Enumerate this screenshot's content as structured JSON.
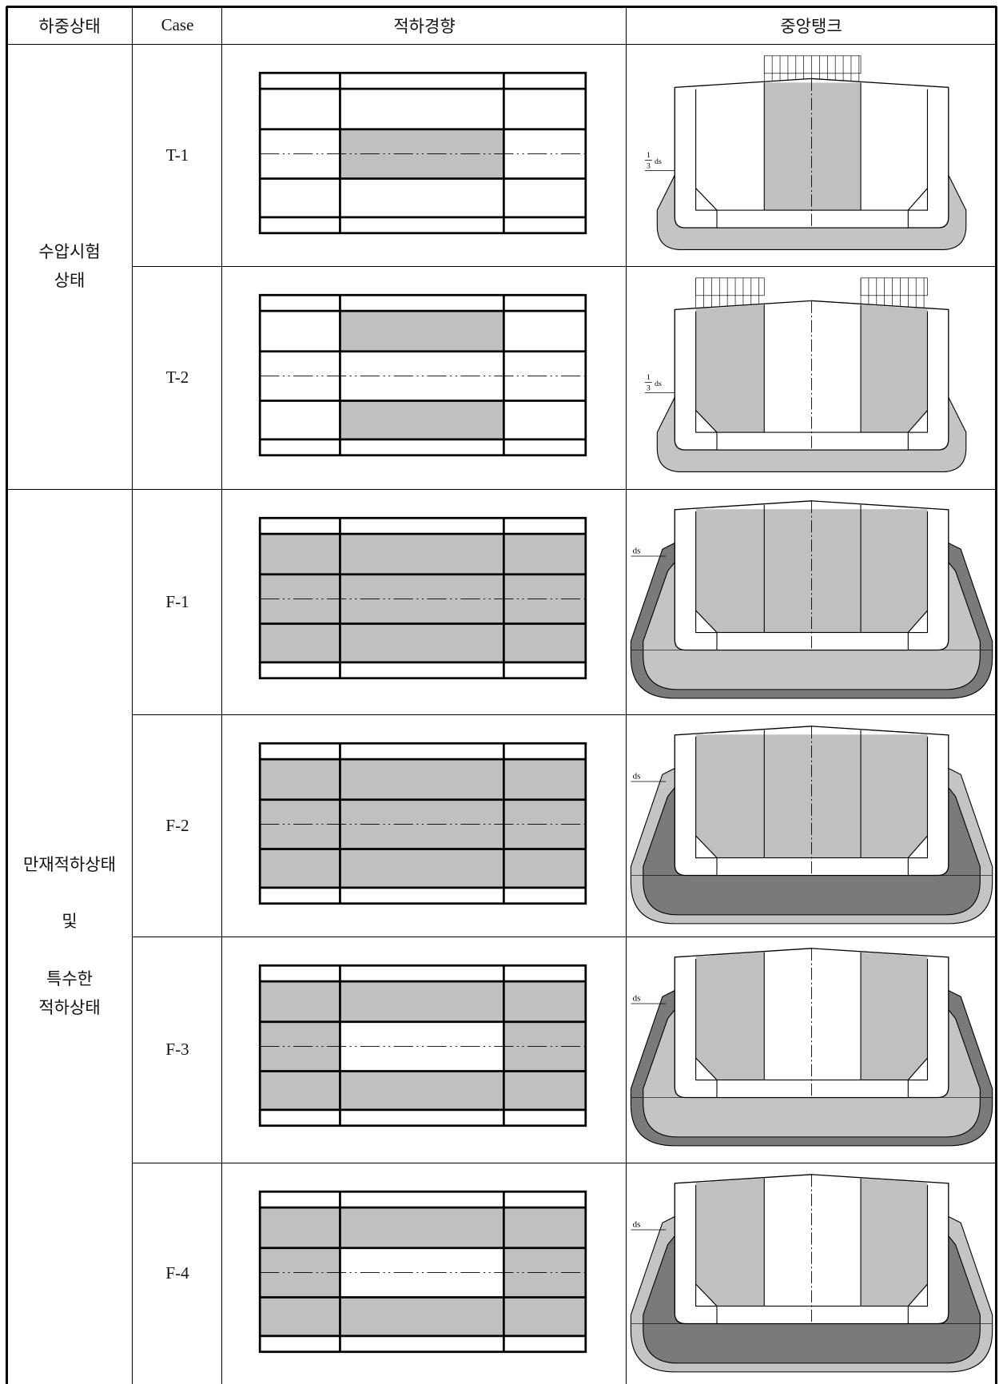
{
  "header": [
    "하중상태",
    "Case",
    "적하경향",
    "중앙탱크"
  ],
  "groups": [
    {
      "label_blocks": [
        [
          "수압시험",
          "상태"
        ]
      ]
    },
    {
      "label_blocks": [
        [
          "만재적하상태"
        ],
        [
          "및"
        ],
        [
          "특수한",
          "적하상태"
        ]
      ]
    }
  ],
  "rows": [
    {
      "case": "T-1",
      "draft_label": {
        "numerator": "1",
        "denominator": "3",
        "symbol": "ds"
      }
    },
    {
      "case": "T-2",
      "draft_label": {
        "numerator": "1",
        "denominator": "3",
        "symbol": "ds"
      }
    },
    {
      "case": "F-1",
      "draft_label": {
        "symbol": "ds"
      }
    },
    {
      "case": "F-2",
      "draft_label": {
        "symbol": "ds"
      }
    },
    {
      "case": "F-3",
      "draft_label": {
        "symbol": "ds"
      }
    },
    {
      "case": "F-4",
      "draft_label": {
        "symbol": "ds"
      }
    }
  ]
}
